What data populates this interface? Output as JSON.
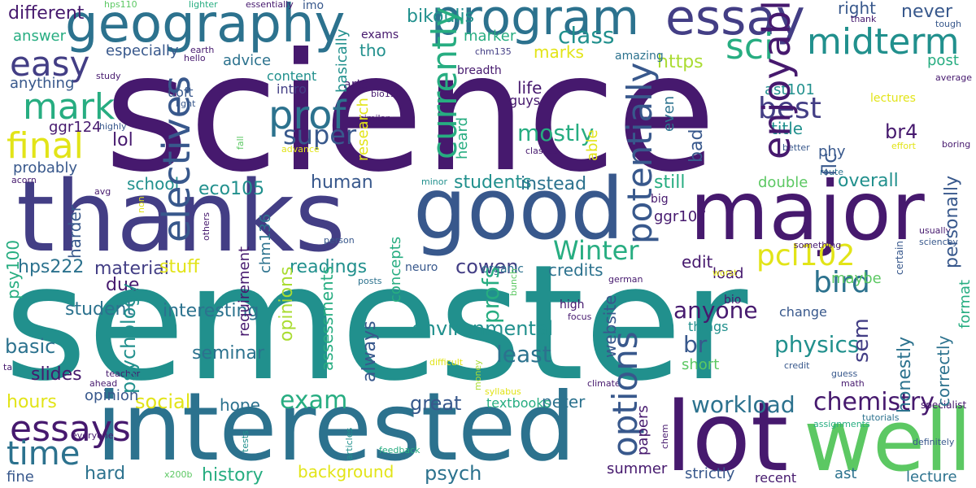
{
  "colors": {
    "background": "#ffffff",
    "purple": "#46196e",
    "indigo": "#433e85",
    "slate": "#38588c",
    "blue": "#2c728e",
    "teal": "#21908d",
    "green": "#27ad81",
    "lime": "#5cc863",
    "yellowgreen": "#aadc32",
    "yellow": "#e2e418"
  },
  "words": [
    {
      "text": "science"
    },
    {
      "text": "semester"
    },
    {
      "text": "thanks"
    },
    {
      "text": "interested"
    },
    {
      "text": "good"
    },
    {
      "text": "major"
    },
    {
      "text": "lot"
    },
    {
      "text": "well"
    },
    {
      "text": "program"
    },
    {
      "text": "geography"
    },
    {
      "text": "essay"
    },
    {
      "text": "midterm"
    },
    {
      "text": "easy"
    },
    {
      "text": "mark"
    },
    {
      "text": "final"
    },
    {
      "text": "prof"
    },
    {
      "text": "sci"
    },
    {
      "text": "essays"
    },
    {
      "text": "time"
    },
    {
      "text": "super"
    },
    {
      "text": "mostly"
    },
    {
      "text": "pcl102"
    },
    {
      "text": "bird"
    },
    {
      "text": "Winter"
    },
    {
      "text": "best"
    },
    {
      "text": "class"
    },
    {
      "text": "exam"
    },
    {
      "text": "chemistry"
    },
    {
      "text": "physics"
    },
    {
      "text": "br"
    },
    {
      "text": "anyone"
    },
    {
      "text": "workload"
    },
    {
      "text": "psych"
    },
    {
      "text": "history"
    },
    {
      "text": "background"
    },
    {
      "text": "hard"
    },
    {
      "text": "social"
    },
    {
      "text": "great"
    },
    {
      "text": "hope"
    },
    {
      "text": "least"
    },
    {
      "text": "environmental"
    },
    {
      "text": "seminar"
    },
    {
      "text": "interesting"
    },
    {
      "text": "student"
    },
    {
      "text": "basic"
    },
    {
      "text": "slides"
    },
    {
      "text": "hours"
    },
    {
      "text": "fine"
    },
    {
      "text": "hps222"
    },
    {
      "text": "material"
    },
    {
      "text": "stuff"
    },
    {
      "text": "readings"
    },
    {
      "text": "cowen"
    },
    {
      "text": "credits"
    },
    {
      "text": "edit"
    },
    {
      "text": "load"
    },
    {
      "text": "br4"
    },
    {
      "text": "still"
    },
    {
      "text": "double"
    },
    {
      "text": "overall"
    },
    {
      "text": "human"
    },
    {
      "text": "students"
    },
    {
      "text": "instead"
    },
    {
      "text": "ggr107"
    },
    {
      "text": "eco105"
    },
    {
      "text": "school"
    },
    {
      "text": "lol"
    },
    {
      "text": "ggr124"
    },
    {
      "text": "probably"
    },
    {
      "text": "different"
    },
    {
      "text": "answer"
    },
    {
      "text": "anything"
    },
    {
      "text": "especially"
    },
    {
      "text": "advice"
    },
    {
      "text": "content"
    },
    {
      "text": "tho"
    },
    {
      "text": "bikoulis"
    },
    {
      "text": "https"
    },
    {
      "text": "marker"
    },
    {
      "text": "marks"
    },
    {
      "text": "never"
    },
    {
      "text": "right"
    },
    {
      "text": "post"
    },
    {
      "text": "ast101"
    },
    {
      "text": "title"
    },
    {
      "text": "phy"
    },
    {
      "text": "intro"
    },
    {
      "text": "arts"
    },
    {
      "text": "uoft"
    },
    {
      "text": "life"
    },
    {
      "text": "guys"
    },
    {
      "text": "breadth"
    },
    {
      "text": "amazing"
    },
    {
      "text": "lectures"
    },
    {
      "text": "due"
    },
    {
      "text": "maybe"
    },
    {
      "text": "things"
    },
    {
      "text": "short"
    },
    {
      "text": "change"
    },
    {
      "text": "high"
    },
    {
      "text": "bio"
    },
    {
      "text": "big"
    },
    {
      "text": "summer"
    },
    {
      "text": "strictly"
    },
    {
      "text": "recent"
    },
    {
      "text": "ast"
    },
    {
      "text": "lecture"
    },
    {
      "text": "peter"
    },
    {
      "text": "textbooks"
    },
    {
      "text": "opinion"
    },
    {
      "text": "specialist"
    },
    {
      "text": "assignments"
    },
    {
      "text": "tutorials"
    },
    {
      "text": "definitely"
    },
    {
      "text": "usually"
    },
    {
      "text": "sciencey"
    },
    {
      "text": "something"
    },
    {
      "text": "average"
    },
    {
      "text": "tough"
    },
    {
      "text": "boring"
    },
    {
      "text": "better"
    },
    {
      "text": "classes"
    },
    {
      "text": "effort"
    },
    {
      "text": "focus"
    },
    {
      "text": "credit"
    },
    {
      "text": "guess"
    },
    {
      "text": "math"
    },
    {
      "text": "german"
    },
    {
      "text": "climate"
    },
    {
      "text": "difficult"
    },
    {
      "text": "syllabus"
    },
    {
      "text": "feedback"
    },
    {
      "text": "x200b"
    },
    {
      "text": "everyone"
    },
    {
      "text": "teacher"
    },
    {
      "text": "ahead"
    },
    {
      "text": "ta"
    },
    {
      "text": "posts"
    },
    {
      "text": "neuro"
    },
    {
      "text": "organic"
    },
    {
      "text": "person"
    },
    {
      "text": "minor"
    },
    {
      "text": "advance"
    },
    {
      "text": "similar"
    },
    {
      "text": "bio130"
    },
    {
      "text": "chm135"
    },
    {
      "text": "exams"
    },
    {
      "text": "imo"
    },
    {
      "text": "essentially"
    },
    {
      "text": "lighter"
    },
    {
      "text": "hps110"
    },
    {
      "text": "earth"
    },
    {
      "text": "hello"
    },
    {
      "text": "study"
    },
    {
      "text": "light"
    },
    {
      "text": "highly"
    },
    {
      "text": "acorn"
    },
    {
      "text": "avg"
    },
    {
      "text": "worst"
    },
    {
      "text": "route"
    },
    {
      "text": "thank"
    },
    {
      "text": "potentially"
    },
    {
      "text": "currently"
    },
    {
      "text": "electives"
    },
    {
      "text": "enjoyable"
    },
    {
      "text": "options"
    },
    {
      "text": "profs"
    },
    {
      "text": "flc"
    },
    {
      "text": "personally"
    },
    {
      "text": "sem"
    },
    {
      "text": "bad"
    },
    {
      "text": "able"
    },
    {
      "text": "heard"
    },
    {
      "text": "even"
    },
    {
      "text": "research"
    },
    {
      "text": "basically"
    },
    {
      "text": "harder"
    },
    {
      "text": "psy100"
    },
    {
      "text": "chm136"
    },
    {
      "text": "concepts"
    },
    {
      "text": "psychology"
    },
    {
      "text": "requirement"
    },
    {
      "text": "opinions"
    },
    {
      "text": "assessments"
    },
    {
      "text": "always"
    },
    {
      "text": "website"
    },
    {
      "text": "papers"
    },
    {
      "text": "honestly"
    },
    {
      "text": "correctly"
    },
    {
      "text": "format"
    },
    {
      "text": "certain"
    },
    {
      "text": "bunch"
    },
    {
      "text": "money"
    },
    {
      "text": "articles"
    },
    {
      "text": "tests"
    },
    {
      "text": "chem"
    },
    {
      "text": "others"
    },
    {
      "text": "non"
    },
    {
      "text": "fall"
    }
  ]
}
